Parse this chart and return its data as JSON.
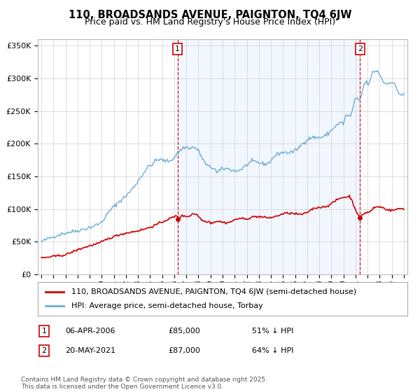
{
  "title": "110, BROADSANDS AVENUE, PAIGNTON, TQ4 6JW",
  "subtitle": "Price paid vs. HM Land Registry's House Price Index (HPI)",
  "legend_line1": "110, BROADSANDS AVENUE, PAIGNTON, TQ4 6JW (semi-detached house)",
  "legend_line2": "HPI: Average price, semi-detached house, Torbay",
  "annotation1": {
    "num": "1",
    "date": "06-APR-2006",
    "price": "£85,000",
    "pct": "51% ↓ HPI"
  },
  "annotation2": {
    "num": "2",
    "date": "20-MAY-2021",
    "price": "£87,000",
    "pct": "64% ↓ HPI"
  },
  "copyright": "Contains HM Land Registry data © Crown copyright and database right 2025.\nThis data is licensed under the Open Government Licence v3.0.",
  "hpi_color": "#6baed6",
  "hpi_fill_color": "#ddeeff",
  "price_color": "#cc0000",
  "vline_color": "#cc0000",
  "background_color": "#ffffff",
  "ylim": [
    0,
    360000
  ],
  "yticks": [
    0,
    50000,
    100000,
    150000,
    200000,
    250000,
    300000,
    350000
  ],
  "ytick_labels": [
    "£0",
    "£50K",
    "£100K",
    "£150K",
    "£200K",
    "£250K",
    "£300K",
    "£350K"
  ],
  "sale1_x": 2006.27,
  "sale1_y": 85000,
  "sale2_x": 2021.38,
  "sale2_y": 87000,
  "xlim_left": 1994.7,
  "xlim_right": 2025.3
}
